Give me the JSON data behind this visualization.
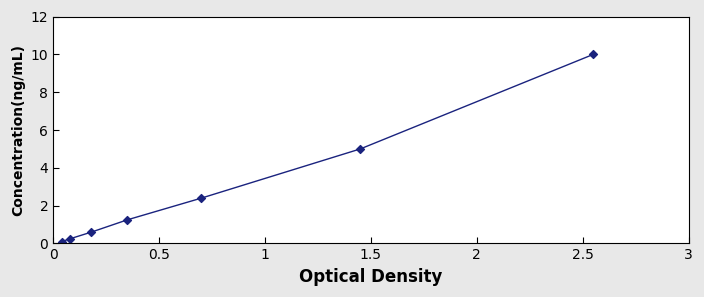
{
  "x": [
    0.04,
    0.08,
    0.18,
    0.35,
    0.7,
    1.45,
    2.55
  ],
  "y": [
    0.1,
    0.25,
    0.6,
    1.25,
    2.4,
    5.0,
    10.0
  ],
  "line_color": "#1a237e",
  "marker_color": "#1a237e",
  "marker_style": "D",
  "marker_size": 4,
  "xlabel": "Optical Density",
  "ylabel": "Concentration(ng/mL)",
  "xlim": [
    0,
    3
  ],
  "ylim": [
    0,
    12
  ],
  "xticks": [
    0,
    0.5,
    1,
    1.5,
    2,
    2.5,
    3
  ],
  "yticks": [
    0,
    2,
    4,
    6,
    8,
    10,
    12
  ],
  "xtick_labels": [
    "0",
    "0.5",
    "1",
    "1.5",
    "2",
    "2.5",
    "3"
  ],
  "ytick_labels": [
    "0",
    "2",
    "4",
    "6",
    "8",
    "10",
    "12"
  ],
  "background_color": "#ffffff",
  "outer_bg": "#e8e8e8",
  "xlabel_fontsize": 12,
  "ylabel_fontsize": 10,
  "tick_fontsize": 10,
  "linewidth": 1.0,
  "line_style": "-"
}
